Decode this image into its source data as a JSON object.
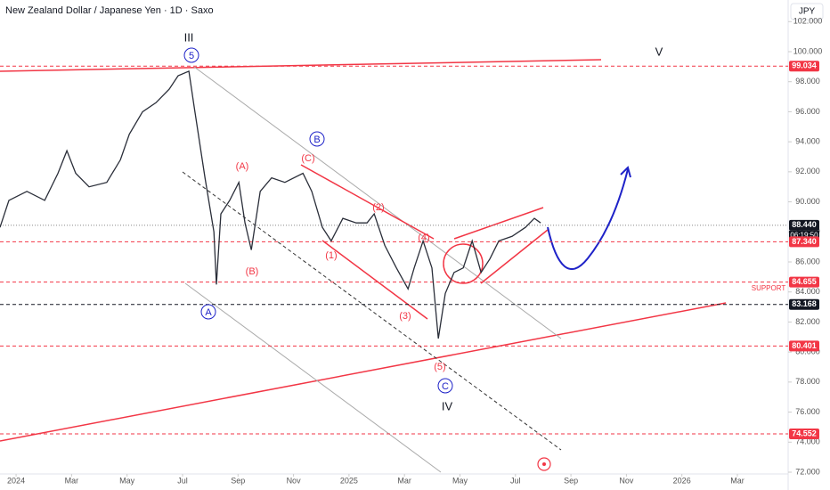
{
  "chart_data": {
    "type": "line",
    "title": "New Zealand Dollar / Japanese Yen · 1D · Saxo",
    "currency": "JPY",
    "countdown": "06:19:50",
    "color": "#2a2e39",
    "x": [
      -0.58,
      -0.26,
      0.39,
      1.03,
      1.51,
      1.83,
      2.15,
      2.63,
      3.27,
      3.76,
      4.08,
      4.56,
      5.04,
      5.52,
      5.84,
      6.23,
      6.42,
      6.81,
      7.13,
      7.22,
      7.38,
      7.7,
      8.03,
      8.25,
      8.48,
      8.8,
      9.21,
      9.69,
      10.34,
      10.66,
      11.04,
      11.36,
      11.78,
      12.26,
      12.65,
      12.91,
      13.29,
      13.71,
      14.13,
      14.35,
      14.67,
      14.99,
      15.22,
      15.47,
      15.79,
      16.12,
      16.44,
      16.76,
      17.08,
      17.4,
      17.88,
      18.36,
      18.68,
      18.91
    ],
    "values": [
      88.3,
      90.1,
      90.7,
      90.1,
      91.9,
      93.4,
      91.9,
      91.0,
      91.3,
      92.8,
      94.5,
      96.0,
      96.6,
      97.5,
      98.4,
      98.7,
      96.3,
      91.6,
      88.0,
      84.5,
      89.2,
      90.1,
      91.3,
      88.6,
      86.8,
      90.7,
      91.6,
      91.3,
      91.9,
      90.7,
      88.3,
      87.4,
      88.9,
      88.6,
      88.6,
      89.2,
      87.1,
      85.6,
      84.2,
      85.6,
      87.4,
      85.6,
      80.9,
      83.9,
      85.3,
      85.6,
      87.4,
      85.3,
      86.2,
      87.4,
      87.7,
      88.3,
      88.9,
      88.6
    ],
    "xlim": [
      -0.58,
      27.83
    ],
    "xticks": [
      {
        "value": 0,
        "label": "2024"
      },
      {
        "value": 2,
        "label": "Mar"
      },
      {
        "value": 4,
        "label": "May"
      },
      {
        "value": 6,
        "label": "Jul"
      },
      {
        "value": 8,
        "label": "Sep"
      },
      {
        "value": 10,
        "label": "Nov"
      },
      {
        "value": 12,
        "label": "2025"
      },
      {
        "value": 14,
        "label": "Mar"
      },
      {
        "value": 16,
        "label": "May"
      },
      {
        "value": 18,
        "label": "Jul"
      },
      {
        "value": 20,
        "label": "Sep"
      },
      {
        "value": 22,
        "label": "Nov"
      },
      {
        "value": 24,
        "label": "2026"
      },
      {
        "value": 26,
        "label": "Mar"
      }
    ],
    "ylim": [
      72,
      103.44
    ],
    "yticks": [
      {
        "value": 72,
        "label": "72.000"
      },
      {
        "value": 74,
        "label": "74.000"
      },
      {
        "value": 76,
        "label": "76.000"
      },
      {
        "value": 78,
        "label": "78.000"
      },
      {
        "value": 80,
        "label": "80.000"
      },
      {
        "value": 82,
        "label": "82.000"
      },
      {
        "value": 84,
        "label": "84.000"
      },
      {
        "value": 86,
        "label": "86.000"
      },
      {
        "value": 88,
        "label": "88.000"
      },
      {
        "value": 90,
        "label": "90.000"
      },
      {
        "value": 92,
        "label": "92.000"
      },
      {
        "value": 94,
        "label": "94.000"
      },
      {
        "value": 96,
        "label": "96.000"
      },
      {
        "value": 98,
        "label": "98.000"
      },
      {
        "value": 100,
        "label": "100.000"
      },
      {
        "value": 102,
        "label": "102.000"
      }
    ],
    "price_levels": [
      {
        "value": 99.034,
        "label": "99.034",
        "color": "#f23645"
      },
      {
        "value": 88.44,
        "label": "88.440",
        "color": "#131722"
      },
      {
        "value": 87.34,
        "label": "87.340",
        "color": "#f23645"
      },
      {
        "value": 84.655,
        "label": "84.655",
        "color": "#f23645"
      },
      {
        "value": 83.168,
        "label": "83.168",
        "color": "#131722"
      },
      {
        "value": 80.401,
        "label": "80.401",
        "color": "#f23645"
      },
      {
        "value": 74.552,
        "label": "74.552",
        "color": "#f23645"
      }
    ],
    "annotations": [
      "III",
      "5",
      "V",
      "B",
      "(C)",
      "(A)",
      "(B)",
      "A",
      "(2)",
      "(1)",
      "(4)",
      "(3)",
      "(5)",
      "C",
      "IV",
      "SUPPORT"
    ]
  }
}
